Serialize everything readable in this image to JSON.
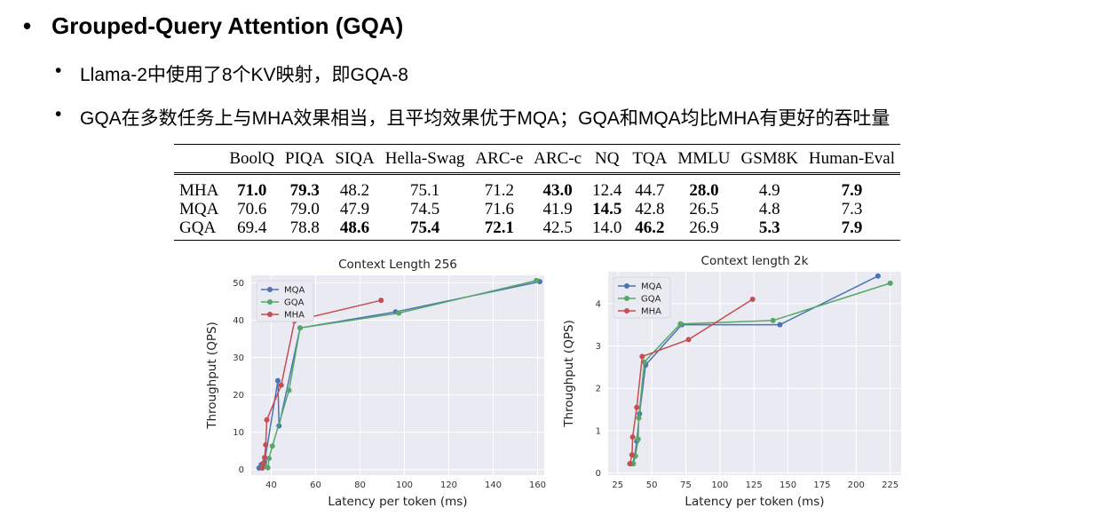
{
  "slide": {
    "title": "Grouped-Query Attention (GQA)",
    "bullets": [
      "Llama-2中使用了8个KV映射，即GQA-8",
      "GQA在多数任务上与MHA效果相当，且平均效果优于MQA；GQA和MQA均比MHA有更好的吞吐量"
    ],
    "bullet_glyph": "•"
  },
  "table": {
    "headers": [
      "",
      "BoolQ",
      "PIQA",
      "SIQA",
      "Hella-Swag",
      "ARC-e",
      "ARC-c",
      "NQ",
      "TQA",
      "MMLU",
      "GSM8K",
      "Human-Eval"
    ],
    "rows": [
      {
        "label": "MHA",
        "cells": [
          {
            "v": "71.0",
            "b": true
          },
          {
            "v": "79.3",
            "b": true
          },
          {
            "v": "48.2",
            "b": false
          },
          {
            "v": "75.1",
            "b": false
          },
          {
            "v": "71.2",
            "b": false
          },
          {
            "v": "43.0",
            "b": true
          },
          {
            "v": "12.4",
            "b": false
          },
          {
            "v": "44.7",
            "b": false
          },
          {
            "v": "28.0",
            "b": true
          },
          {
            "v": "4.9",
            "b": false
          },
          {
            "v": "7.9",
            "b": true
          }
        ]
      },
      {
        "label": "MQA",
        "cells": [
          {
            "v": "70.6",
            "b": false
          },
          {
            "v": "79.0",
            "b": false
          },
          {
            "v": "47.9",
            "b": false
          },
          {
            "v": "74.5",
            "b": false
          },
          {
            "v": "71.6",
            "b": false
          },
          {
            "v": "41.9",
            "b": false
          },
          {
            "v": "14.5",
            "b": true
          },
          {
            "v": "42.8",
            "b": false
          },
          {
            "v": "26.5",
            "b": false
          },
          {
            "v": "4.8",
            "b": false
          },
          {
            "v": "7.3",
            "b": false
          }
        ]
      },
      {
        "label": "GQA",
        "cells": [
          {
            "v": "69.4",
            "b": false
          },
          {
            "v": "78.8",
            "b": false
          },
          {
            "v": "48.6",
            "b": true
          },
          {
            "v": "75.4",
            "b": true
          },
          {
            "v": "72.1",
            "b": true
          },
          {
            "v": "42.5",
            "b": false
          },
          {
            "v": "14.0",
            "b": false
          },
          {
            "v": "46.2",
            "b": true
          },
          {
            "v": "26.9",
            "b": false
          },
          {
            "v": "5.3",
            "b": true
          },
          {
            "v": "7.9",
            "b": true
          }
        ]
      }
    ]
  },
  "colors": {
    "MQA": "#4c72b0",
    "GQA": "#55a868",
    "MHA": "#c44e52",
    "plot_bg": "#eaeaf2"
  },
  "chart_data": [
    {
      "type": "line",
      "title": "Context Length 256",
      "xlabel": "Latency per token (ms)",
      "ylabel": "Throughput (QPS)",
      "xlim": [
        31,
        163
      ],
      "ylim": [
        -1.5,
        52
      ],
      "xticks": [
        40,
        60,
        80,
        100,
        120,
        140,
        160
      ],
      "yticks": [
        0,
        10,
        20,
        30,
        40,
        50
      ],
      "legend": "top-left",
      "grid": true,
      "series": [
        {
          "name": "MQA",
          "points": [
            [
              34.5,
              0.4
            ],
            [
              35.5,
              1.3
            ],
            [
              36.0,
              1.5
            ],
            [
              37.0,
              2.0
            ],
            [
              43.0,
              23.8
            ],
            [
              43.5,
              11.7
            ],
            [
              53.0,
              37.9
            ],
            [
              96.0,
              42.2
            ],
            [
              161.0,
              50.3
            ]
          ]
        },
        {
          "name": "GQA",
          "points": [
            [
              36.0,
              0.5
            ],
            [
              37.0,
              1.0
            ],
            [
              38.5,
              0.5
            ],
            [
              39.0,
              3.0
            ],
            [
              40.5,
              6.3
            ],
            [
              48.0,
              21.2
            ],
            [
              53.0,
              37.9
            ],
            [
              97.5,
              41.9
            ],
            [
              159.5,
              50.6
            ]
          ]
        },
        {
          "name": "MHA",
          "points": [
            [
              36.0,
              0.4
            ],
            [
              36.5,
              1.6
            ],
            [
              37.0,
              3.2
            ],
            [
              37.5,
              6.6
            ],
            [
              38.0,
              13.3
            ],
            [
              44.5,
              22.6
            ],
            [
              50.5,
              39.8
            ],
            [
              89.5,
              45.3
            ]
          ]
        }
      ]
    },
    {
      "type": "line",
      "title": "Context length 2k",
      "xlabel": "Latency per token (ms)",
      "ylabel": "Throughput (QPS)",
      "xlim": [
        18,
        233
      ],
      "ylim": [
        -0.05,
        4.75
      ],
      "xticks": [
        25,
        50,
        75,
        100,
        125,
        150,
        175,
        200,
        225
      ],
      "yticks": [
        0,
        1,
        2,
        3,
        4
      ],
      "legend": "top-left",
      "grid": true,
      "series": [
        {
          "name": "MQA",
          "points": [
            [
              34.0,
              0.22
            ],
            [
              36.0,
              0.22
            ],
            [
              37.5,
              0.4
            ],
            [
              39.0,
              0.75
            ],
            [
              41.0,
              1.4
            ],
            [
              45.5,
              2.55
            ],
            [
              72.0,
              3.5
            ],
            [
              144.0,
              3.5
            ],
            [
              216.0,
              4.65
            ]
          ]
        },
        {
          "name": "GQA",
          "points": [
            [
              34.5,
              0.22
            ],
            [
              36.5,
              0.22
            ],
            [
              38.0,
              0.4
            ],
            [
              40.0,
              0.8
            ],
            [
              40.5,
              1.3
            ],
            [
              44.5,
              2.62
            ],
            [
              71.0,
              3.52
            ],
            [
              139.0,
              3.6
            ],
            [
              225.0,
              4.48
            ]
          ]
        },
        {
          "name": "MHA",
          "points": [
            [
              34.0,
              0.22
            ],
            [
              35.5,
              0.43
            ],
            [
              36.0,
              0.85
            ],
            [
              39.0,
              1.55
            ],
            [
              43.0,
              2.75
            ],
            [
              77.0,
              3.15
            ],
            [
              124.0,
              4.1
            ]
          ]
        }
      ]
    }
  ]
}
